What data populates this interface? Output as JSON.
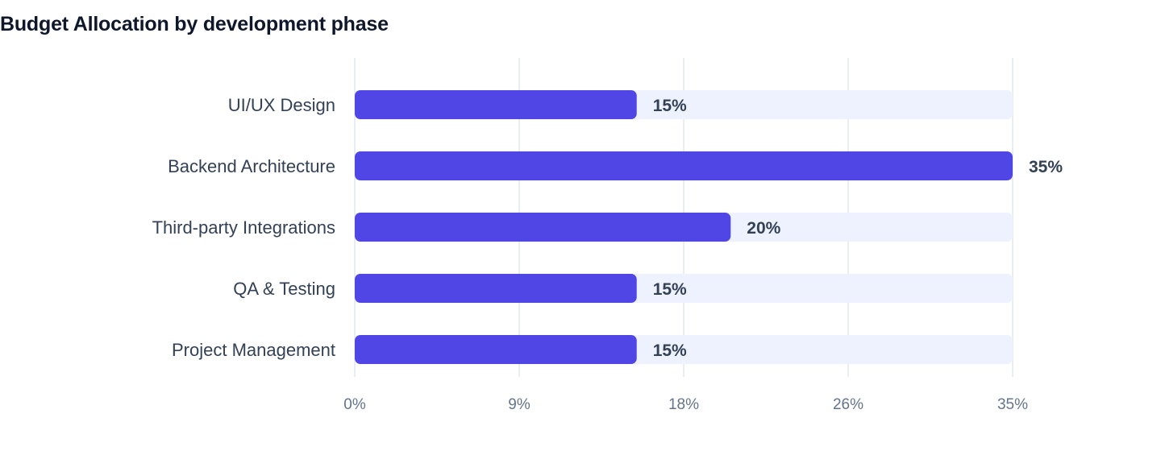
{
  "chart_data": {
    "type": "bar",
    "orientation": "horizontal",
    "title": "Budget Allocation by development phase",
    "categories": [
      "UI/UX Design",
      "Backend Architecture",
      "Third-party Integrations",
      "QA & Testing",
      "Project Management"
    ],
    "values": [
      15,
      35,
      20,
      15,
      15
    ],
    "value_labels": [
      "15%",
      "35%",
      "20%",
      "15%",
      "15%"
    ],
    "xlim": [
      0,
      35
    ],
    "x_ticks": [
      0,
      8.75,
      17.5,
      26.25,
      35
    ],
    "x_tick_labels": [
      "0%",
      "9%",
      "18%",
      "26%",
      "35%"
    ],
    "grid": true,
    "colors": {
      "bar": "#4f46e5",
      "track": "#eef2ff",
      "grid": "#e2e8f0"
    }
  }
}
